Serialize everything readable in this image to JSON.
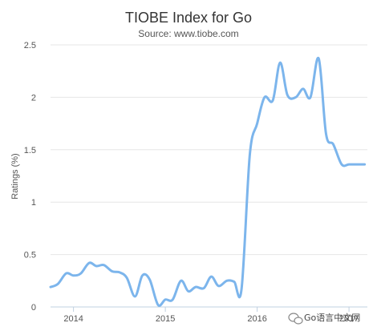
{
  "chart_data": {
    "type": "line",
    "title": "TIOBE Index for Go",
    "subtitle": "Source: www.tiobe.com",
    "ylabel": "Ratings (%)",
    "xlabel": "",
    "ylim": [
      0,
      2.5
    ],
    "xlim": [
      2013.75,
      2017.2
    ],
    "yticks": [
      0,
      0.5,
      1,
      1.5,
      2,
      2.5
    ],
    "ytick_labels": [
      "0",
      "0.5",
      "1",
      "1.5",
      "2",
      "2.5"
    ],
    "xticks": [
      2014,
      2015,
      2016,
      2017
    ],
    "xtick_labels": [
      "2014",
      "2015",
      "2016",
      "2017"
    ],
    "grid": true,
    "series_color": "#7cb5ec",
    "series": [
      {
        "name": "",
        "x": [
          2013.75,
          2013.83,
          2013.92,
          2014.0,
          2014.08,
          2014.17,
          2014.25,
          2014.33,
          2014.42,
          2014.5,
          2014.58,
          2014.67,
          2014.75,
          2014.83,
          2014.92,
          2015.0,
          2015.08,
          2015.17,
          2015.25,
          2015.33,
          2015.42,
          2015.5,
          2015.58,
          2015.67,
          2015.75,
          2015.83,
          2015.92,
          2016.0,
          2016.08,
          2016.17,
          2016.25,
          2016.33,
          2016.42,
          2016.5,
          2016.58,
          2016.67,
          2016.75,
          2016.83,
          2016.92,
          2017.0,
          2017.08,
          2017.17
        ],
        "values": [
          0.19,
          0.22,
          0.32,
          0.3,
          0.32,
          0.42,
          0.39,
          0.4,
          0.34,
          0.33,
          0.28,
          0.1,
          0.3,
          0.26,
          0.02,
          0.07,
          0.07,
          0.25,
          0.15,
          0.19,
          0.18,
          0.29,
          0.2,
          0.25,
          0.24,
          0.17,
          1.45,
          1.75,
          2.0,
          1.97,
          2.33,
          2.02,
          2.0,
          2.08,
          2.0,
          2.37,
          1.65,
          1.55,
          1.36,
          1.36,
          1.36,
          1.36
        ]
      }
    ]
  },
  "watermark": {
    "text": "Go语言中文网",
    "icon": "wechat-bubble-icon"
  }
}
